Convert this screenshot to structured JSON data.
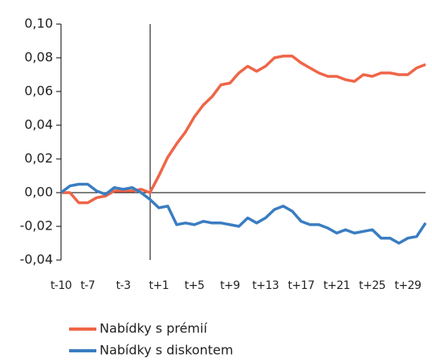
{
  "chart_data": {
    "type": "line",
    "categories": [
      "t-10",
      null,
      null,
      "t-7",
      null,
      null,
      null,
      "t-3",
      null,
      null,
      null,
      "t+1",
      null,
      null,
      null,
      "t+5",
      null,
      null,
      null,
      "t+9",
      null,
      null,
      null,
      "t+13",
      null,
      null,
      null,
      "t+17",
      null,
      null,
      null,
      "t+21",
      null,
      null,
      null,
      "t+25",
      null,
      null,
      null,
      "t+29",
      null,
      null
    ],
    "series": [
      {
        "name": "Nabídky s prémií",
        "color": "#ef6547",
        "values": [
          0,
          0,
          -0.006,
          -0.006,
          -0.003,
          -0.002,
          0.001,
          0.001,
          0.001,
          0.002,
          0,
          0.01,
          0.021,
          0.029,
          0.036,
          0.045,
          0.052,
          0.057,
          0.064,
          0.065,
          0.071,
          0.075,
          0.072,
          0.075,
          0.08,
          0.081,
          0.081,
          0.077,
          0.074,
          0.071,
          0.069,
          0.069,
          0.067,
          0.066,
          0.07,
          0.069,
          0.071,
          0.071,
          0.07,
          0.07,
          0.074,
          0.076
        ]
      },
      {
        "name": "Nabídky s diskontem",
        "color": "#3a7dc1",
        "values": [
          0,
          0.004,
          0.005,
          0.005,
          0.001,
          -0.001,
          0.003,
          0.002,
          0.003,
          0,
          -0.004,
          -0.009,
          -0.008,
          -0.019,
          -0.018,
          -0.019,
          -0.017,
          -0.018,
          -0.018,
          -0.019,
          -0.02,
          -0.015,
          -0.018,
          -0.015,
          -0.01,
          -0.008,
          -0.011,
          -0.017,
          -0.019,
          -0.019,
          -0.021,
          -0.024,
          -0.022,
          -0.024,
          -0.023,
          -0.022,
          -0.027,
          -0.027,
          -0.03,
          -0.027,
          -0.026,
          -0.018
        ]
      }
    ],
    "ylim": [
      -0.04,
      0.1
    ],
    "yticks": [
      {
        "value": -0.04,
        "label": "-0,04"
      },
      {
        "value": -0.02,
        "label": "-0,02"
      },
      {
        "value": 0,
        "label": "0,00"
      },
      {
        "value": 0.02,
        "label": "0,02"
      },
      {
        "value": 0.04,
        "label": "0,04"
      },
      {
        "value": 0.06,
        "label": "0,06"
      },
      {
        "value": 0.08,
        "label": "0,08"
      },
      {
        "value": 0.1,
        "label": "0,10"
      }
    ]
  }
}
